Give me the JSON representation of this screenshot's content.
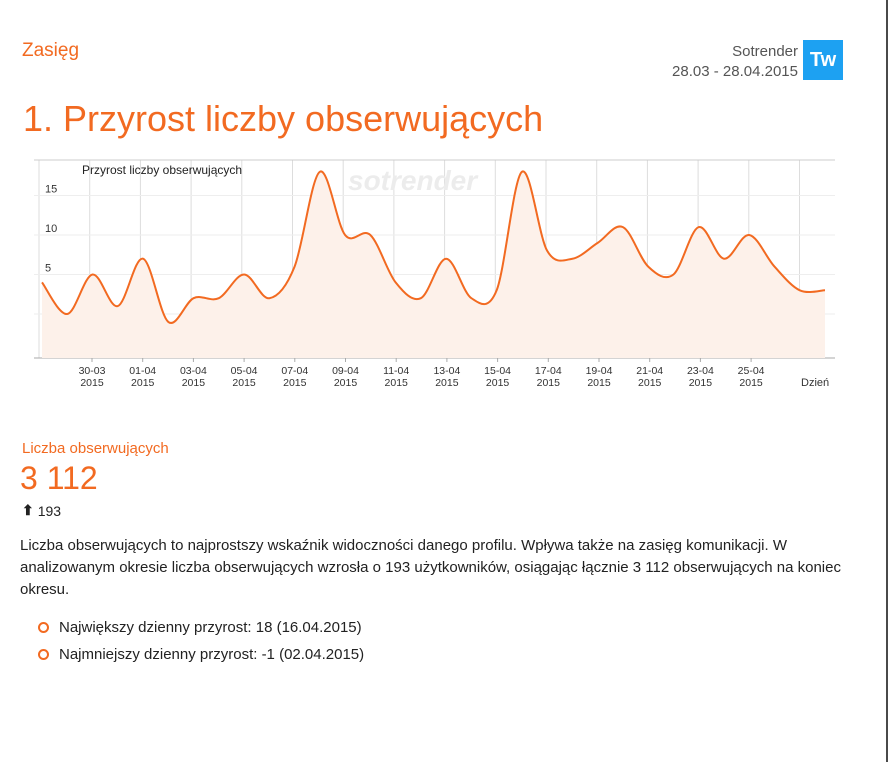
{
  "header": {
    "section": "Zasięg",
    "brand": "Sotrender",
    "date_range": "28.03 - 28.04.2015",
    "badge": "Tw"
  },
  "title": "1. Przyrost liczby obserwujących",
  "watermark": "sotrender",
  "chart_data": {
    "type": "line",
    "title": "Przyrost liczby obserwujących",
    "xlabel": "Dzień",
    "ylabel": "",
    "ylim": [
      -5,
      20
    ],
    "yticks": [
      0,
      5,
      10,
      15
    ],
    "grid": true,
    "legend": "none",
    "x_tick_labels": [
      {
        "date": "30-03",
        "year": "2015"
      },
      {
        "date": "01-04",
        "year": "2015"
      },
      {
        "date": "03-04",
        "year": "2015"
      },
      {
        "date": "05-04",
        "year": "2015"
      },
      {
        "date": "07-04",
        "year": "2015"
      },
      {
        "date": "09-04",
        "year": "2015"
      },
      {
        "date": "11-04",
        "year": "2015"
      },
      {
        "date": "13-04",
        "year": "2015"
      },
      {
        "date": "15-04",
        "year": "2015"
      },
      {
        "date": "17-04",
        "year": "2015"
      },
      {
        "date": "19-04",
        "year": "2015"
      },
      {
        "date": "21-04",
        "year": "2015"
      },
      {
        "date": "23-04",
        "year": "2015"
      },
      {
        "date": "25-04",
        "year": "2015"
      }
    ],
    "x": [
      "28-03",
      "29-03",
      "30-03",
      "31-03",
      "01-04",
      "02-04",
      "03-04",
      "04-04",
      "05-04",
      "06-04",
      "07-04",
      "08-04",
      "09-04",
      "10-04",
      "11-04",
      "12-04",
      "13-04",
      "14-04",
      "15-04",
      "16-04",
      "17-04",
      "18-04",
      "19-04",
      "20-04",
      "21-04",
      "22-04",
      "23-04",
      "24-04",
      "25-04",
      "26-04",
      "27-04",
      "28-04"
    ],
    "values": [
      4,
      0,
      5,
      1,
      7,
      -1,
      2,
      2,
      5,
      2,
      6,
      18,
      10,
      10,
      4,
      2,
      7,
      2,
      3,
      18,
      8,
      7,
      9,
      11,
      6,
      5,
      11,
      7,
      10,
      6,
      3,
      3
    ],
    "colors": {
      "line": "#f26a21",
      "fill": "#fdf1ea",
      "grid": "#dddddd"
    }
  },
  "stats": {
    "label": "Liczba obserwujących",
    "value": "3 112",
    "change": "193"
  },
  "description": "Liczba obserwujących to najprostszy wskaźnik widoczności danego profilu. Wpływa także na zasięg komunikacji. W analizowanym okresie liczba obserwujących wzrosła o 193 użytkowników, osiągając łącznie 3 112 obserwujących na koniec okresu.",
  "bullets": [
    "Największy dzienny przyrost: 18 (16.04.2015)",
    "Najmniejszy dzienny przyrost: -1 (02.04.2015)"
  ]
}
